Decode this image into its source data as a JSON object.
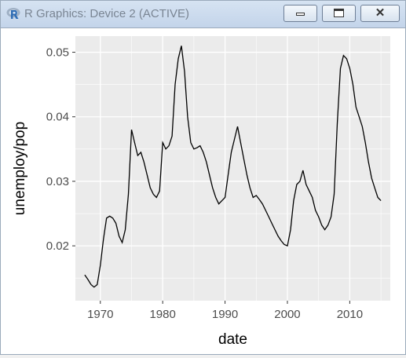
{
  "window": {
    "title": "R Graphics: Device 2 (ACTIVE)",
    "icons": {
      "app": "r-logo-icon",
      "minimize": "minimize-icon",
      "maximize": "maximize-icon",
      "close": "close-icon"
    },
    "close_glyph": "✕"
  },
  "chart_data": {
    "type": "line",
    "xlabel": "date",
    "ylabel": "unemploy/pop",
    "x_ticks": [
      1970,
      1980,
      1990,
      2000,
      2010
    ],
    "y_ticks": [
      0.02,
      0.03,
      0.04,
      0.05
    ],
    "x_tick_labels": [
      "1970",
      "1980",
      "1990",
      "2000",
      "2010"
    ],
    "y_tick_labels": [
      "0.02",
      "0.03",
      "0.04",
      "0.05"
    ],
    "xlim": [
      1966,
      2016.5
    ],
    "ylim": [
      0.0115,
      0.0525
    ],
    "grid": true,
    "panel_color": "#ebebeb",
    "line_color": "#000000",
    "series": [
      {
        "x": [
          1967.5,
          1968,
          1968.5,
          1969,
          1969.5,
          1970,
          1970.5,
          1971,
          1971.5,
          1972,
          1972.5,
          1973,
          1973.5,
          1974,
          1974.5,
          1975,
          1975.5,
          1976,
          1976.5,
          1977,
          1977.5,
          1978,
          1978.5,
          1979,
          1979.5,
          1980,
          1980.5,
          1981,
          1981.5,
          1982,
          1982.5,
          1983,
          1983.5,
          1984,
          1984.5,
          1985,
          1985.5,
          1986,
          1986.5,
          1987,
          1987.5,
          1988,
          1988.5,
          1989,
          1989.5,
          1990,
          1990.5,
          1991,
          1991.5,
          1992,
          1992.5,
          1993,
          1993.5,
          1994,
          1994.5,
          1995,
          1995.5,
          1996,
          1996.5,
          1997,
          1997.5,
          1998,
          1998.5,
          1999,
          1999.5,
          2000,
          2000.5,
          2001,
          2001.5,
          2002,
          2002.5,
          2003,
          2003.5,
          2004,
          2004.5,
          2005,
          2005.5,
          2006,
          2006.5,
          2007,
          2007.5,
          2008,
          2008.5,
          2009,
          2009.5,
          2010,
          2010.5,
          2011,
          2011.5,
          2012,
          2012.5,
          2013,
          2013.5,
          2014,
          2014.5,
          2015
        ],
        "y": [
          0.0155,
          0.0148,
          0.014,
          0.0136,
          0.014,
          0.017,
          0.021,
          0.0243,
          0.0246,
          0.0243,
          0.0235,
          0.0215,
          0.0205,
          0.0225,
          0.028,
          0.038,
          0.036,
          0.034,
          0.0345,
          0.033,
          0.031,
          0.029,
          0.028,
          0.0275,
          0.0285,
          0.036,
          0.035,
          0.0355,
          0.037,
          0.045,
          0.049,
          0.051,
          0.047,
          0.04,
          0.036,
          0.035,
          0.0352,
          0.0355,
          0.0345,
          0.033,
          0.031,
          0.029,
          0.0275,
          0.0265,
          0.027,
          0.0275,
          0.031,
          0.0345,
          0.0365,
          0.0385,
          0.036,
          0.0335,
          0.031,
          0.029,
          0.0275,
          0.0278,
          0.0272,
          0.0265,
          0.0255,
          0.0245,
          0.0235,
          0.0225,
          0.0215,
          0.0208,
          0.0202,
          0.02,
          0.0225,
          0.027,
          0.0295,
          0.03,
          0.0317,
          0.0295,
          0.0285,
          0.0275,
          0.0255,
          0.0245,
          0.0232,
          0.0225,
          0.0232,
          0.0245,
          0.028,
          0.039,
          0.0475,
          0.0495,
          0.049,
          0.0475,
          0.045,
          0.0415,
          0.04,
          0.0385,
          0.036,
          0.033,
          0.0305,
          0.029,
          0.0275,
          0.027
        ]
      }
    ]
  }
}
